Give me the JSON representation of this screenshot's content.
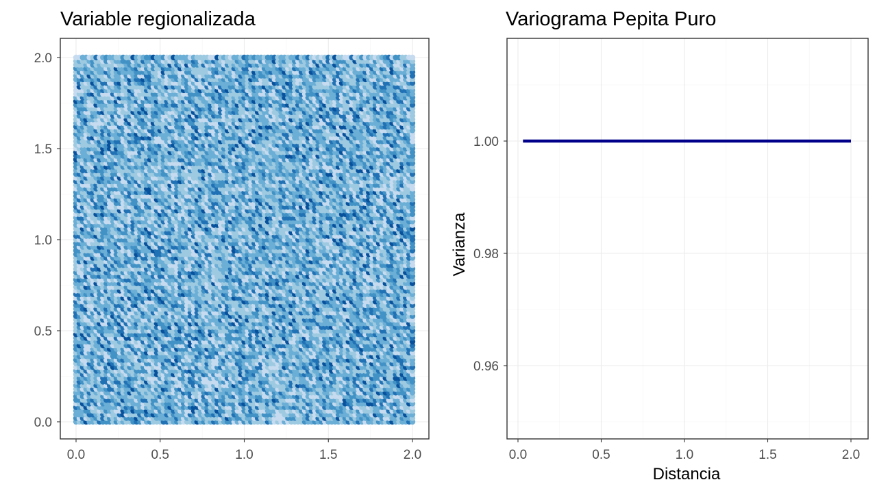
{
  "chart_data": [
    {
      "type": "scatter",
      "title": "Variable regionalizada",
      "xlabel": "",
      "ylabel": "",
      "xlim": [
        0,
        2
      ],
      "ylim": [
        0,
        2
      ],
      "x_ticks": [
        "0.0",
        "0.5",
        "1.0",
        "1.5",
        "2.0"
      ],
      "y_ticks": [
        "0.0",
        "0.5",
        "1.0",
        "1.5",
        "2.0"
      ],
      "grid": true,
      "legend": "none",
      "colormap": [
        "#c6dbef",
        "#9ecae1",
        "#6baed6",
        "#4292c6",
        "#2171b5",
        "#08519c"
      ],
      "grid_points": {
        "x_from": 0,
        "x_to": 2,
        "y_from": 0,
        "y_to": 2,
        "step": 0.02
      },
      "description_of_values": "random noise (pure nugget field)"
    },
    {
      "type": "line",
      "title": "Variograma Pepita Puro",
      "xlabel": "Distancia",
      "ylabel": "Varianza",
      "xlim": [
        0,
        2
      ],
      "ylim": [
        0.95,
        1.0
      ],
      "x_ticks": [
        "0.0",
        "0.5",
        "1.0",
        "1.5",
        "2.0"
      ],
      "y_ticks": [
        "0.96",
        "0.98",
        "1.00"
      ],
      "grid": true,
      "legend": "none",
      "series": [
        {
          "color": "#00008b",
          "x": [
            0.03,
            2.0
          ],
          "y": [
            1.0,
            1.0
          ]
        }
      ]
    }
  ]
}
